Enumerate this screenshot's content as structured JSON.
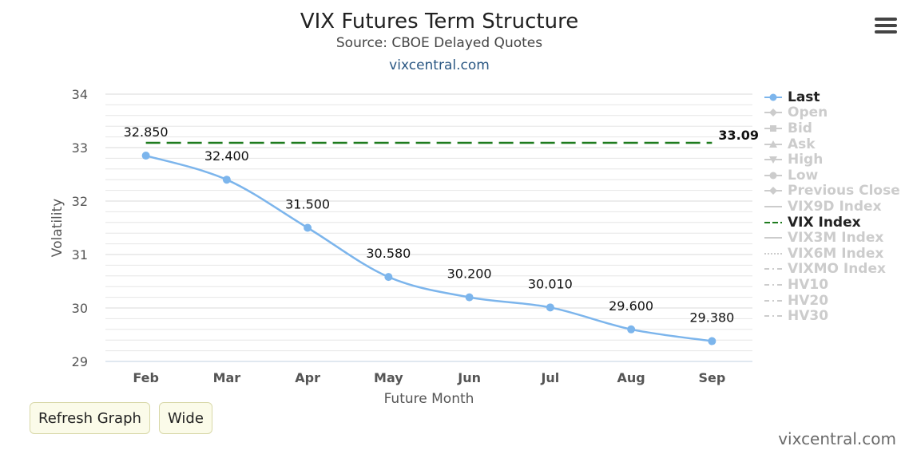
{
  "header": {
    "title": "VIX Futures Term Structure",
    "subtitle": "Source: CBOE Delayed Quotes",
    "link": "vixcentral.com"
  },
  "buttons": {
    "refresh": "Refresh Graph",
    "wide": "Wide"
  },
  "watermark": "vixcentral.com",
  "colors": {
    "last": "#7cb5ec",
    "vix": "#1e7b1e",
    "grid": "#e6e6e6",
    "hidden": "#cccccc"
  },
  "chart_data": {
    "type": "line",
    "title": "VIX Futures Term Structure",
    "subtitle": "Source: CBOE Delayed Quotes",
    "xlabel": "Future Month",
    "ylabel": "Volatility",
    "categories": [
      "Feb",
      "Mar",
      "Apr",
      "May",
      "Jun",
      "Jul",
      "Aug",
      "Sep"
    ],
    "ylim": [
      29,
      34
    ],
    "yticks": [
      29,
      30,
      31,
      32,
      33,
      34
    ],
    "grid": true,
    "legend_position": "right",
    "series": [
      {
        "name": "Last",
        "values": [
          32.85,
          32.4,
          31.5,
          30.58,
          30.2,
          30.01,
          29.6,
          29.38
        ],
        "labels": [
          "32.850",
          "32.400",
          "31.500",
          "30.580",
          "30.200",
          "30.010",
          "29.600",
          "29.380"
        ]
      },
      {
        "name": "VIX Index",
        "value": 33.09,
        "label": "33.09",
        "style": "dashed"
      }
    ],
    "legend": [
      {
        "name": "Last",
        "visible": true,
        "symbol": "circle-line"
      },
      {
        "name": "Open",
        "visible": false,
        "symbol": "diamond-line"
      },
      {
        "name": "Bid",
        "visible": false,
        "symbol": "square-line"
      },
      {
        "name": "Ask",
        "visible": false,
        "symbol": "triangle-line"
      },
      {
        "name": "High",
        "visible": false,
        "symbol": "triangle-down-line"
      },
      {
        "name": "Low",
        "visible": false,
        "symbol": "circle-line"
      },
      {
        "name": "Previous Close",
        "visible": false,
        "symbol": "diamond-line"
      },
      {
        "name": "VIX9D Index",
        "visible": false,
        "symbol": "solid"
      },
      {
        "name": "VIX Index",
        "visible": true,
        "symbol": "dashed"
      },
      {
        "name": "VIX3M Index",
        "visible": false,
        "symbol": "solid"
      },
      {
        "name": "VIX6M Index",
        "visible": false,
        "symbol": "dotted"
      },
      {
        "name": "VIXMO Index",
        "visible": false,
        "symbol": "dashdot"
      },
      {
        "name": "HV10",
        "visible": false,
        "symbol": "dashdot"
      },
      {
        "name": "HV20",
        "visible": false,
        "symbol": "dashdot"
      },
      {
        "name": "HV30",
        "visible": false,
        "symbol": "dashdot"
      }
    ]
  }
}
